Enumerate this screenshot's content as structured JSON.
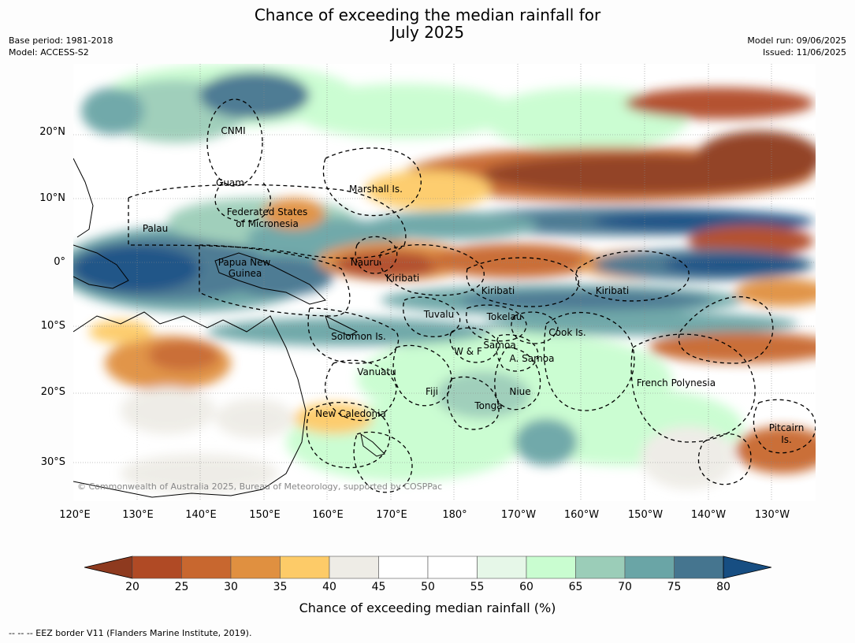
{
  "title_line1": "Chance of exceeding the median rainfall for",
  "title_line2": "July 2025",
  "meta_left": {
    "base_period": "Base period: 1981-2018",
    "model": "Model: ACCESS-S2"
  },
  "meta_right": {
    "model_run": "Model run: 09/06/2025",
    "issued": "Issued: 11/06/2025"
  },
  "lat_labels": [
    "20°N",
    "10°N",
    "0°",
    "10°S",
    "20°S",
    "30°S"
  ],
  "lon_labels": [
    "120°E",
    "130°E",
    "140°E",
    "150°E",
    "160°E",
    "170°E",
    "180°",
    "170°W",
    "160°W",
    "150°W",
    "140°W",
    "130°W"
  ],
  "regions": [
    "CNMI",
    "Guam",
    "Marshall Is.",
    "Federated States",
    "of Micronesia",
    "Palau",
    "Papua New",
    "Guinea",
    "Nauru",
    "Kiribati",
    "Kiribati",
    "Kiribati",
    "Tuvalu",
    "Tokelau",
    "Cook Is.",
    "Solomon Is.",
    "Samoa",
    "W & F",
    "A. Samoa",
    "Vanuatu",
    "Fiji",
    "Niue",
    "French Polynesia",
    "Tonga",
    "New Caledonia",
    "Pitcairn",
    "Is."
  ],
  "copyright": "© Commonwealth of Australia 2025, Bureau of Meteorology, supported by COSPPac",
  "colorbar": {
    "ticks": [
      "20",
      "25",
      "30",
      "35",
      "40",
      "45",
      "50",
      "55",
      "60",
      "65",
      "70",
      "75",
      "80"
    ],
    "colors": [
      "#8e3a1f",
      "#b04a25",
      "#c8672f",
      "#e09040",
      "#fdcb68",
      "#eeece6",
      "#ffffff",
      "#ffffff",
      "#e6f7e8",
      "#c9fdd0",
      "#9bcdb8",
      "#6aa5a6",
      "#45758f",
      "#174e82"
    ],
    "label": "Chance of exceeding median rainfall (%)"
  },
  "footer": "--  --  -- EEZ border V11 (Flanders Marine Institute, 2019)."
}
